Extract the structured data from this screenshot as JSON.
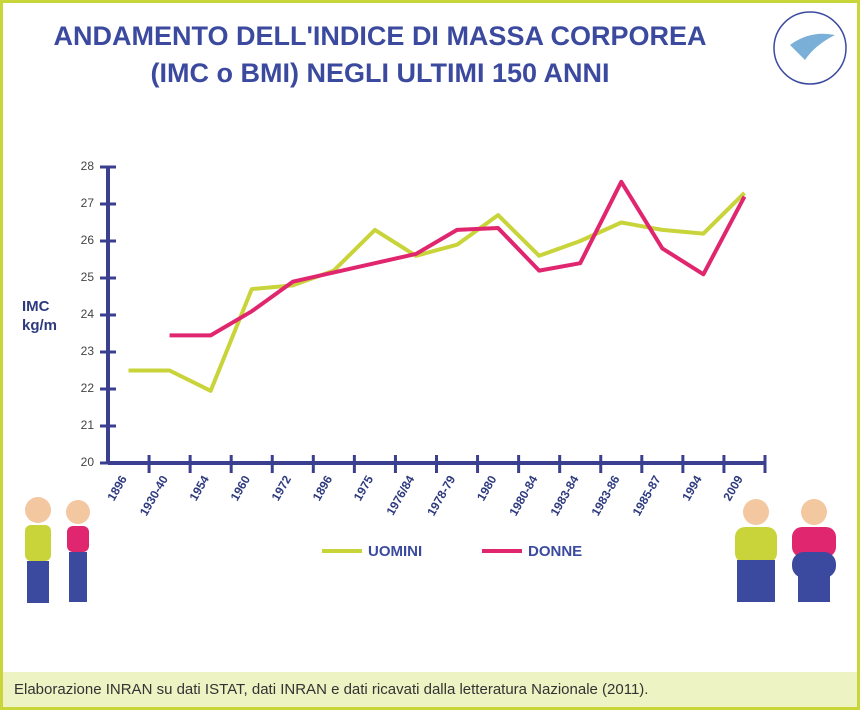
{
  "chart_data": {
    "type": "line",
    "title": [
      "ANDAMENTO DELL'INDICE DI MASSA CORPOREA",
      "(IMC o BMI) NEGLI ULTIMI 150 ANNI"
    ],
    "ylabel": [
      "IMC",
      "kg/m"
    ],
    "categories": [
      "1896",
      "1930-40",
      "1954",
      "1960",
      "1972",
      "1896",
      "1975",
      "1976/84",
      "1978-79",
      "1980",
      "1980-84",
      "1983-84",
      "1983-86",
      "1985-87",
      "1994",
      "2009"
    ],
    "series": [
      {
        "name": "UOMINI",
        "color": "#c8d43a",
        "values": [
          22.5,
          22.5,
          21.95,
          24.7,
          24.8,
          25.2,
          26.3,
          25.6,
          25.9,
          26.7,
          25.6,
          26.0,
          26.5,
          26.3,
          26.2,
          27.3
        ]
      },
      {
        "name": "DONNE",
        "color": "#e0266e",
        "values": [
          null,
          23.45,
          23.45,
          24.1,
          24.9,
          25.15,
          25.4,
          25.65,
          26.3,
          26.35,
          25.2,
          25.4,
          27.6,
          25.8,
          25.1,
          27.2
        ]
      }
    ],
    "ylim": [
      20,
      28
    ],
    "yticks": [
      20,
      21,
      22,
      23,
      24,
      25,
      26,
      27,
      28
    ],
    "footer": "Elaborazione INRAN su dati ISTAT, dati INRAN e dati ricavati dalla letteratura Nazionale (2011)."
  }
}
